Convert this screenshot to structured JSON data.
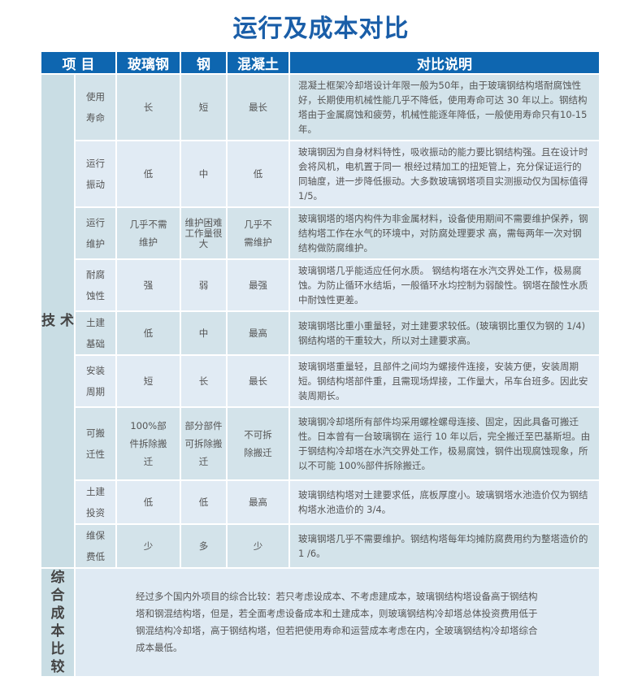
{
  "title": "运行及成本对比",
  "headers": [
    "项 目",
    "玻璃钢",
    "钢",
    "混凝土",
    "对比说明"
  ],
  "category_tech": "技 术",
  "rows": [
    {
      "item": "使用寿命",
      "frp": "长",
      "steel": "短",
      "concrete": "最长",
      "desc": "混凝土框架冷却塔设计年限一般为50年，由于玻璃钢结构塔耐腐蚀性好，长期使用机械性能几乎不降低，使用寿命可达 30 年以上。钢结构塔由于金属腐蚀和疲劳，机械性能逐年降低，一般使用寿命只有10-15 年。"
    },
    {
      "item": "运行振动",
      "frp": "低",
      "steel": "中",
      "concrete": "低",
      "desc": "玻璃钢因为自身材料特性，吸收振动的能力要比钢结构强。且在设计时会将风机，电机置于同一 根经过精加工的扭矩管上，充分保证运行的同轴度，进一步降低振动。大多数玻璃钢塔项目实测振动仅为国标值得 1/5。"
    },
    {
      "item": "运行维护",
      "frp": "几乎不需维护",
      "steel": "维护困难工作量很大",
      "concrete": "几乎不需维护",
      "desc": "玻璃钢塔的塔内构件为非金属材料，设备使用期间不需要维护保养，钢结构塔工作在水气的环境中，对防腐处理要求 高，需每两年一次对钢结构做防腐维护。"
    },
    {
      "item": "耐腐蚀性",
      "frp": "强",
      "steel": "弱",
      "concrete": "最强",
      "desc": "玻璃钢塔几乎能适应任何水质。 钢结构塔在水汽交界处工作，极易腐蚀。为防止循环水结垢，一般循环水均控制为弱酸性。钢塔在酸性水质中耐蚀性更差。"
    },
    {
      "item": "土建基础",
      "frp": "低",
      "steel": "中",
      "concrete": "最高",
      "desc": "玻璃钢塔比重小重量轻，对土建要求较低。(玻璃钢比重仅为钢的 1/4) 钢结构塔的干重较大，所以对土建要求高。"
    },
    {
      "item": "安装周期",
      "frp": "短",
      "steel": "长",
      "concrete": "最长",
      "desc": "玻璃钢塔重量轻，且部件之间均为螺接件连接，安装方便，安装周期短。钢结构塔部件重，且需现场焊接，工作量大，吊车台班多。因此安装周期长。"
    },
    {
      "item": "可搬迁性",
      "frp": "100%部件拆除搬迁",
      "steel": "部分部件可拆除搬迁",
      "concrete": "不可拆除搬迁",
      "desc": "玻璃钢冷却塔所有部件均采用螺栓螺母连接、固定，因此具备可搬迁性。日本曾有一台玻璃钢在 运行 10 年以后，完全搬迁至巴基斯坦。由于钢结构冷却塔在水汽交界处工作，极易腐蚀，钢件出现腐蚀现象，所以不可能 100%部件拆除搬迁。"
    },
    {
      "item": "土建投资",
      "frp": "低",
      "steel": "低",
      "concrete": "最高",
      "desc": "玻璃钢结构塔对土建要求低，底板厚度小。玻璃钢塔水池造价仅为钢结构塔水池造价的 3/4。"
    },
    {
      "item": "维保费低",
      "frp": "少",
      "steel": "多",
      "concrete": "少",
      "desc": "玻璃钢塔几乎不需要维护。钢结构塔每年均摊防腐费用约为整塔造价的1 /6。"
    }
  ],
  "summary": {
    "category": "综合成本比较",
    "text": "经过多个国内外项目的综合比较：若只考虑设成本、不考虑建成本，玻璃钢结构塔设备高于钢结构塔和钢混结构塔，但是，若全面考虑设备成本和土建成本，则玻璃钢结构冷却塔总体投资费用低于钢混结构冷却塔，高于钢结构塔，但若把使用寿命和运营成本考虑在内，全玻璃钢结构冷却塔综合成本最低。"
  },
  "colors": {
    "header": "#0e66b0",
    "title": "#1a5ea8"
  }
}
